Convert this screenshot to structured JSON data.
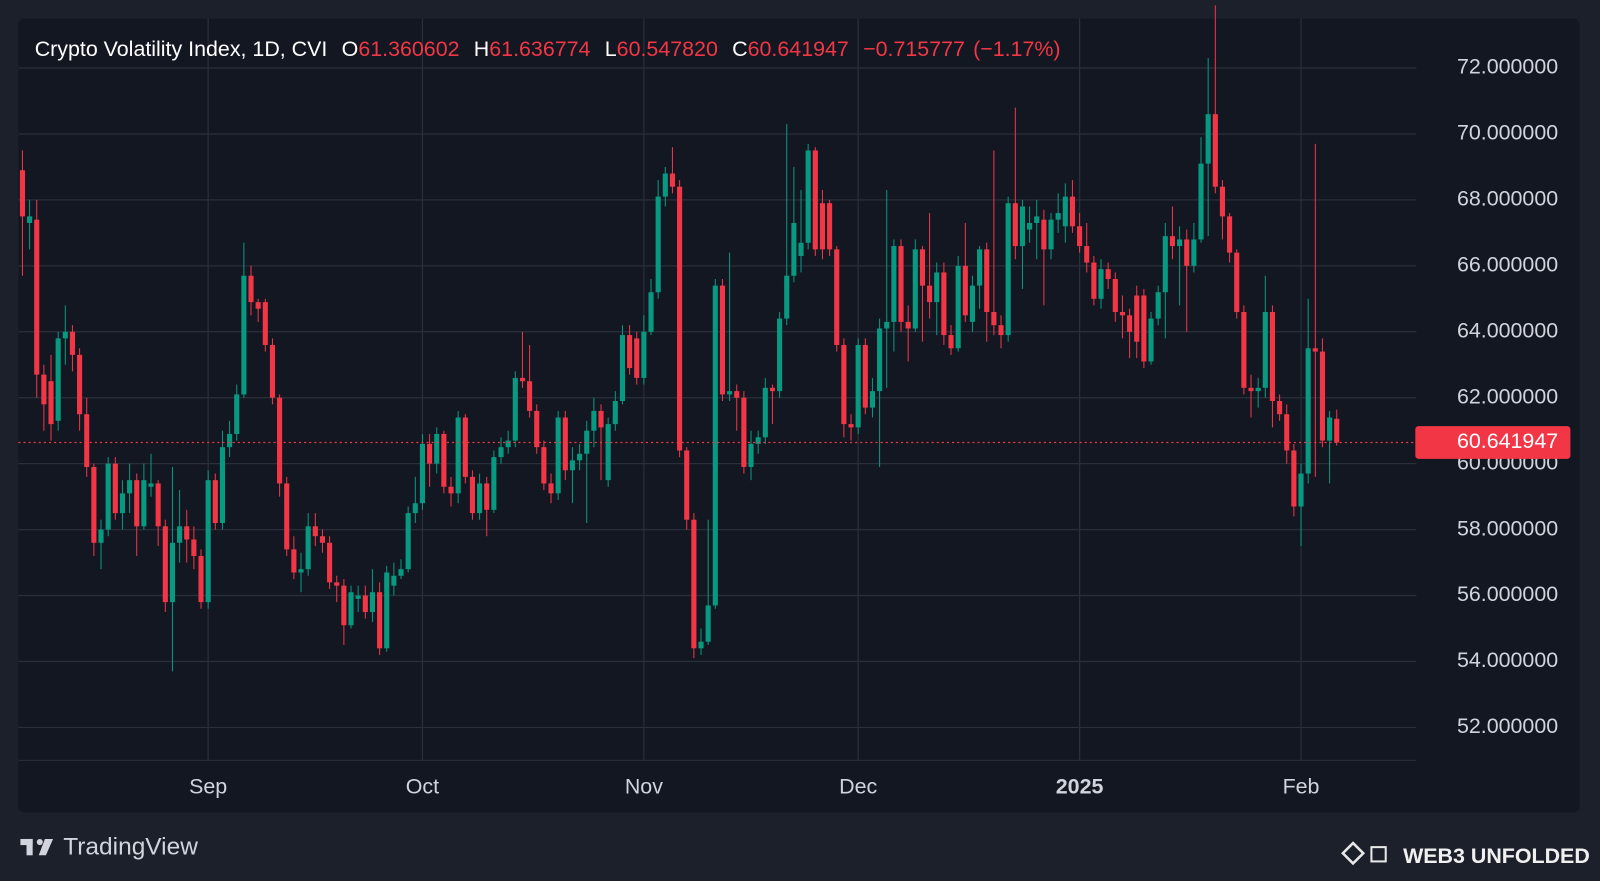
{
  "chart_data": {
    "type": "candlestick",
    "title": "Crypto Volatility Index, 1D, CVI",
    "categories": [
      null,
      null,
      null,
      null,
      null,
      null,
      null,
      null,
      null,
      null,
      null,
      null,
      null,
      null,
      null,
      null,
      null,
      null,
      null,
      null,
      null,
      null,
      null,
      null,
      null,
      null,
      "Sep",
      null,
      null,
      null,
      null,
      null,
      null,
      null,
      null,
      null,
      null,
      null,
      null,
      null,
      null,
      null,
      null,
      null,
      null,
      null,
      null,
      null,
      null,
      null,
      null,
      null,
      null,
      null,
      null,
      null,
      "Oct",
      null,
      null,
      null,
      null,
      null,
      null,
      null,
      null,
      null,
      null,
      null,
      null,
      null,
      null,
      null,
      null,
      null,
      null,
      null,
      null,
      null,
      null,
      null,
      null,
      null,
      null,
      null,
      null,
      null,
      null,
      "Nov",
      null,
      null,
      null,
      null,
      null,
      null,
      null,
      null,
      null,
      null,
      null,
      null,
      null,
      null,
      null,
      null,
      null,
      null,
      null,
      null,
      null,
      null,
      null,
      null,
      null,
      null,
      null,
      null,
      null,
      "Dec",
      null,
      null,
      null,
      null,
      null,
      null,
      null,
      null,
      null,
      null,
      null,
      null,
      null,
      null,
      null,
      null,
      null,
      null,
      null,
      null,
      null,
      null,
      null,
      null,
      null,
      null,
      null,
      null,
      null,
      null,
      "2025",
      null,
      null,
      null,
      null,
      null,
      null,
      null,
      null,
      null,
      null,
      null,
      null,
      null,
      null,
      null,
      null,
      null,
      null,
      null,
      null,
      null,
      null,
      null,
      null,
      null,
      null,
      null,
      null,
      null,
      null,
      "Feb",
      null,
      null,
      null,
      null,
      null
    ],
    "open": [
      68.9,
      67.3,
      67.4,
      62.7,
      62.5,
      61.3,
      63.8,
      64,
      63.3,
      61.5,
      59.9,
      57.6,
      58,
      60,
      58.5,
      59.1,
      59.5,
      58.1,
      59.3,
      59.4,
      58.1,
      55.8,
      57.6,
      58.1,
      57.7,
      57.2,
      55.8,
      59.5,
      58.2,
      60.5,
      60.9,
      62.1,
      65.7,
      64.9,
      64.9,
      63.6,
      62,
      59.4,
      57.4,
      56.7,
      56.8,
      58.1,
      57.8,
      57.6,
      56.4,
      56.3,
      55.1,
      55.9,
      56,
      55.5,
      56.1,
      54.4,
      56.3,
      56.6,
      56.8,
      58.5,
      58.8,
      60.6,
      60,
      60.9,
      59.3,
      59.1,
      61.4,
      59.6,
      58.5,
      59.4,
      58.6,
      60.2,
      60.5,
      60.7,
      62.6,
      62.5,
      61.6,
      60.5,
      59.4,
      59.1,
      61.4,
      59.8,
      60.1,
      60.3,
      61,
      61.6,
      59.5,
      61.2,
      61.9,
      63.9,
      63.8,
      62.6,
      64,
      65.2,
      68.1,
      68.8,
      68.4,
      60.4,
      58.3,
      54.4,
      54.6,
      55.7,
      65.4,
      62.1,
      62.2,
      62,
      59.9,
      60.6,
      60.8,
      62.3,
      62.2,
      64.4,
      65.7,
      66.3,
      66.7,
      69.5,
      67.9,
      67.9,
      66.5,
      63.6,
      61.2,
      61.1,
      63.6,
      61.7,
      62.2,
      64.1,
      64.3,
      66.6,
      64.3,
      64.1,
      66.5,
      65.4,
      64.9,
      65.8,
      63.9,
      63.5,
      66,
      64.3,
      65.4,
      66.5,
      64.6,
      64.2,
      63.9,
      67.9,
      66.6,
      67.1,
      67.3,
      67.4,
      66.5,
      67.4,
      67.2,
      68.1,
      67.2,
      66.6,
      66.1,
      65,
      65.9,
      65.6,
      64.6,
      64.5,
      65.1,
      65.1,
      63.1,
      64.4,
      65.2,
      66.9,
      66.6,
      66.8,
      66,
      66.8,
      69.1,
      70.6,
      68.4,
      67.5,
      66.4,
      64.6,
      62.3,
      62.2,
      62.3,
      64.6,
      61.9,
      61.5,
      60.4,
      58.7,
      59.7,
      63.5,
      63.4,
      60.7,
      61.360602
    ],
    "high": [
      69.5,
      68,
      68,
      63,
      63.3,
      64,
      64.8,
      64.2,
      63.5,
      62,
      60,
      58.3,
      60.2,
      60.2,
      59.5,
      60,
      59.7,
      60,
      60.3,
      59.5,
      58.3,
      59.9,
      59.2,
      58.6,
      58.1,
      57.4,
      59.8,
      59.7,
      61,
      61.3,
      62.4,
      66.7,
      66,
      65,
      65,
      63.8,
      62.1,
      59.6,
      57.8,
      57.3,
      58.5,
      58.5,
      58,
      57.8,
      56.6,
      56.5,
      56.3,
      56.3,
      56.3,
      56.8,
      56.4,
      56.9,
      57,
      57.1,
      58.7,
      59.6,
      60.9,
      60.9,
      61.1,
      61,
      59.6,
      61.6,
      61.5,
      59.8,
      59.7,
      59.6,
      60.4,
      60.8,
      61,
      62.8,
      64,
      63.6,
      61.8,
      60.7,
      59.7,
      61.6,
      61.6,
      60.5,
      60.6,
      61.3,
      62,
      61.8,
      61.4,
      62.2,
      64.2,
      64.2,
      64,
      64.5,
      65.6,
      68.6,
      69,
      69.6,
      68.6,
      60.5,
      58.5,
      55,
      58.3,
      65.6,
      65.6,
      66.4,
      62.4,
      62.2,
      61,
      61,
      62.6,
      62.4,
      64.6,
      70.3,
      69,
      68.3,
      69.7,
      69.6,
      68.3,
      68,
      66.6,
      63.8,
      61.5,
      63.8,
      63.8,
      62.6,
      64.4,
      68.3,
      66.8,
      66.8,
      64.8,
      66.8,
      66.6,
      67.6,
      66.1,
      66.1,
      64.2,
      66.3,
      67.3,
      65.7,
      66.6,
      66.7,
      69.5,
      64.5,
      68.1,
      70.8,
      68,
      67.8,
      68,
      67.7,
      67.6,
      68.2,
      68.5,
      68.6,
      67.6,
      67.3,
      66.3,
      66.2,
      66.1,
      65.8,
      65.1,
      64.7,
      65.4,
      65.3,
      64.6,
      65.4,
      67.3,
      67.8,
      67.2,
      67.1,
      67.3,
      69.9,
      72.3,
      73.9,
      68.6,
      67.6,
      66.5,
      64.8,
      62.7,
      62.6,
      65.7,
      64.8,
      62.1,
      61.8,
      60.6,
      60,
      65,
      69.7,
      63.8,
      61.6,
      61.636774
    ],
    "low": [
      65.7,
      66.5,
      62,
      61,
      60.7,
      61,
      63,
      62.8,
      61,
      59.6,
      57.2,
      56.8,
      57.8,
      58.3,
      58,
      58.5,
      57.2,
      58,
      59,
      57.5,
      55.5,
      53.7,
      57,
      57,
      56.8,
      55.6,
      55.6,
      58,
      58,
      60.2,
      60.7,
      62,
      64.5,
      64.3,
      63.4,
      61.8,
      59,
      57.2,
      56.5,
      56.1,
      56.6,
      57.5,
      57.3,
      56.2,
      55.8,
      54.5,
      55,
      55.5,
      55.3,
      55.2,
      54.2,
      54.3,
      56,
      56.5,
      56.7,
      58.2,
      58.6,
      59.3,
      59.7,
      59.1,
      58.7,
      58.8,
      59.4,
      58.3,
      58.3,
      57.8,
      58.5,
      60,
      60.3,
      60.5,
      62.3,
      61.4,
      60.3,
      59.2,
      58.8,
      58.9,
      59.5,
      58.8,
      59.8,
      58.2,
      60.5,
      59.5,
      59.3,
      61,
      61.8,
      62.7,
      62.4,
      62.4,
      63.9,
      65,
      67.8,
      68.2,
      60.2,
      58,
      54.1,
      54.2,
      54.5,
      55.6,
      61.9,
      61.9,
      61,
      59.7,
      59.5,
      60.3,
      60.6,
      61.2,
      62,
      64.2,
      65.5,
      65.8,
      66.5,
      66.3,
      66.2,
      66.3,
      63.4,
      60.8,
      60.7,
      60.9,
      61.5,
      61.4,
      59.9,
      62.3,
      63.4,
      64,
      63.1,
      64,
      63.7,
      64.4,
      63.9,
      63.6,
      63.3,
      63.4,
      64.3,
      64,
      64.7,
      63.7,
      63.9,
      63.5,
      63.7,
      66.2,
      65.3,
      66.7,
      66.2,
      64.8,
      66.2,
      67,
      66.7,
      67,
      66.4,
      65.8,
      64.8,
      64.7,
      65.3,
      64.3,
      63.8,
      63.2,
      63.2,
      62.9,
      63,
      64.2,
      63.8,
      66.2,
      64.8,
      64,
      65.8,
      66.7,
      66.9,
      68.2,
      66.8,
      66.1,
      64.4,
      62.1,
      61.4,
      61.7,
      62,
      61.1,
      61.3,
      60,
      58.4,
      57.5,
      59.4,
      59.6,
      60.5,
      59.4,
      60.54782
    ],
    "close": [
      67.5,
      67.5,
      62.7,
      61.8,
      61.2,
      63.8,
      64,
      63.3,
      61.5,
      59.9,
      57.6,
      58,
      60,
      58.5,
      59.1,
      59.5,
      58.1,
      59.5,
      59.4,
      58.1,
      55.8,
      57.6,
      58.1,
      57.7,
      57.2,
      55.8,
      59.5,
      58.2,
      60.5,
      60.9,
      62.1,
      65.7,
      64.9,
      64.7,
      63.6,
      62,
      59.4,
      57.4,
      56.7,
      56.8,
      58.1,
      57.8,
      57.6,
      56.4,
      56.3,
      55.1,
      56.1,
      56,
      55.5,
      56.1,
      54.4,
      56.7,
      56.6,
      56.8,
      58.5,
      58.8,
      60.6,
      60,
      60.9,
      59.3,
      59.1,
      61.4,
      59.6,
      58.5,
      59.4,
      58.6,
      60.2,
      60.5,
      60.7,
      62.6,
      62.5,
      61.6,
      60.5,
      59.4,
      59.1,
      61.4,
      59.8,
      60.1,
      60.3,
      61,
      61.6,
      61.1,
      61.2,
      61.9,
      63.9,
      62.9,
      62.6,
      64,
      65.2,
      68.1,
      68.8,
      68.4,
      60.4,
      58.3,
      54.4,
      54.6,
      55.7,
      65.4,
      62.1,
      62.2,
      62,
      59.9,
      60.6,
      60.8,
      62.3,
      62.2,
      64.4,
      65.7,
      67.3,
      66.7,
      69.5,
      66.5,
      66.5,
      66.5,
      63.6,
      61.2,
      61.1,
      63.6,
      61.7,
      62.2,
      64.1,
      64.3,
      66.6,
      64.3,
      64.1,
      66.5,
      65.4,
      64.9,
      65.8,
      63.9,
      63.5,
      66,
      64.5,
      65.4,
      66.5,
      64.6,
      64.2,
      63.9,
      67.9,
      66.6,
      67.8,
      67.3,
      67.5,
      66.5,
      67.4,
      67.6,
      68.1,
      67.2,
      66.6,
      66.1,
      65,
      65.9,
      65.6,
      64.6,
      64.5,
      64,
      63.7,
      63.1,
      64.4,
      65.2,
      66.9,
      66.6,
      66.8,
      66,
      66.8,
      69.1,
      70.6,
      68.4,
      67.5,
      66.4,
      64.6,
      62.3,
      62.2,
      62.3,
      64.6,
      61.9,
      61.5,
      60.4,
      58.7,
      59.7,
      63.5,
      63.4,
      60.7,
      61.4,
      60.641947
    ],
    "up_color": "#089981",
    "down_color": "#f23645",
    "ylim": [
      51,
      73.5
    ],
    "yticks": [
      {
        "value": 52,
        "label": "52.000000"
      },
      {
        "value": 54,
        "label": "54.000000"
      },
      {
        "value": 56,
        "label": "56.000000"
      },
      {
        "value": 58,
        "label": "58.000000"
      },
      {
        "value": 60,
        "label": "60.000000"
      },
      {
        "value": 62,
        "label": "62.000000"
      },
      {
        "value": 64,
        "label": "64.000000"
      },
      {
        "value": 66,
        "label": "66.000000"
      },
      {
        "value": 68,
        "label": "68.000000"
      },
      {
        "value": 70,
        "label": "70.000000"
      },
      {
        "value": 72,
        "label": "72.000000"
      }
    ],
    "grid": true,
    "readout": {
      "keys": [
        "O",
        "H",
        "L",
        "C"
      ],
      "values": [
        {
          "value": 61.360602,
          "label": "61.360602"
        },
        {
          "value": 61.636774,
          "label": "61.636774"
        },
        {
          "value": 60.54782,
          "label": "60.547820"
        },
        {
          "value": 60.641947,
          "label": "60.641947"
        }
      ],
      "change": {
        "value": -0.715777,
        "label": "−0.715777"
      },
      "change_pct": {
        "value": -1.17,
        "label": "(−1.17%)"
      }
    }
  },
  "footer": {
    "brand": "TradingView",
    "watermark": "WEB3 UNFOLDED"
  }
}
